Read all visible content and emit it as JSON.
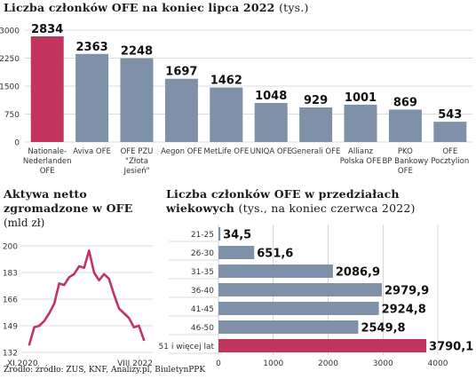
{
  "top_title": "Liczba członków OFE na koniec lipca 2022",
  "top_unit": "(tys.)",
  "left_title_line1": "Aktywa netto",
  "left_title_line2": "zgromadzone w OFE",
  "left_unit": "(mld zł)",
  "right_title_line1": "Liczba członków OFE w przedziałach",
  "right_title_line2": "wiekowych",
  "right_unit": "(tys., na koniec czerwca 2022)",
  "source": "Źródło: źródło: ZUS, KNF, Analizy.pl, BiuletynPPK",
  "colors": {
    "highlight": "#c2345e",
    "bar": "#7e91a9",
    "line": "#c2345e",
    "grid": "#b8b8b8"
  },
  "chart_data": [
    {
      "type": "bar",
      "categories": [
        [
          "Nationale-",
          "Nederlanden",
          "OFE"
        ],
        [
          "Aviva OFE"
        ],
        [
          "OFE PZU",
          "\"Złota",
          "Jesień\""
        ],
        [
          "Aegon OFE"
        ],
        [
          "MetLife OFE"
        ],
        [
          "UNIQA OFE"
        ],
        [
          "Generali OFE"
        ],
        [
          "Allianz",
          "Polska OFE"
        ],
        [
          "PKO",
          "BP Bankowy",
          "OFE"
        ],
        [
          "OFE",
          "Pocztylion"
        ]
      ],
      "values": [
        2834,
        2363,
        2248,
        1697,
        1462,
        1048,
        929,
        1001,
        869,
        543
      ],
      "value_labels": [
        "2834",
        "2363",
        "2248",
        "1697",
        "1462",
        "1048",
        "929",
        "1001",
        "869",
        "543"
      ],
      "highlight_index": 0,
      "ylim": [
        0,
        3000
      ],
      "yticks": [
        0,
        750,
        1500,
        2250,
        3000
      ],
      "grid": true
    },
    {
      "type": "line",
      "ylim": [
        132,
        200
      ],
      "yticks": [
        132,
        149,
        166,
        183,
        200
      ],
      "x_start_label": "XI 2020",
      "x_end_label": "VIII 2022",
      "values": [
        137,
        148,
        149,
        152,
        157,
        163,
        176,
        175,
        180,
        182,
        187,
        186,
        197,
        183,
        178,
        182,
        179,
        169,
        160,
        157,
        154,
        148,
        149,
        140
      ],
      "grid": true
    },
    {
      "type": "bar",
      "orientation": "horizontal",
      "categories": [
        "21-25",
        "26-30",
        "31-35",
        "36-40",
        "41-45",
        "46-50",
        "51 i więcej lat"
      ],
      "values": [
        34.5,
        651.6,
        2086.9,
        2979.9,
        2924.8,
        2549.8,
        3790.1
      ],
      "value_labels": [
        "34,5",
        "651,6",
        "2086,9",
        "2979,9",
        "2924,8",
        "2549,8",
        "3790,1"
      ],
      "highlight_index": 6,
      "xlim": [
        0,
        4000
      ],
      "xticks": [
        0,
        1000,
        2000,
        3000,
        4000
      ],
      "grid": true
    }
  ]
}
